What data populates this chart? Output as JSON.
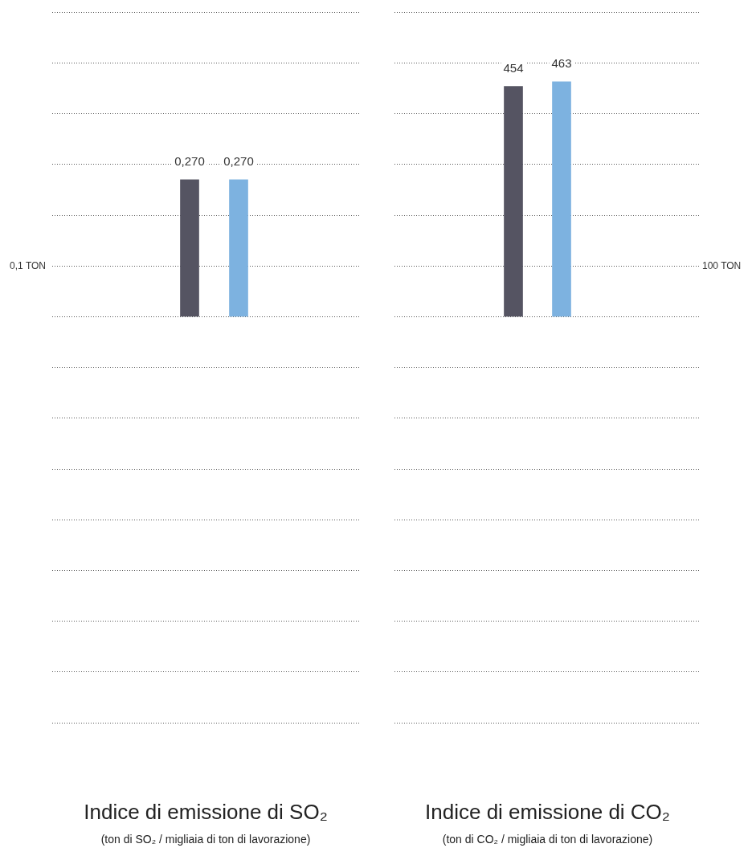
{
  "chart_data": [
    {
      "type": "bar",
      "title": "Indice di emissione di SO₂",
      "subtitle": "(ton di SO₂ / migliaia di ton di lavorazione)",
      "categories": [
        null,
        null
      ],
      "values": [
        0.27,
        0.27
      ],
      "colors": [
        "#555462",
        "#7db2e0"
      ],
      "value_labels": [
        "0,270",
        "0,270"
      ],
      "ylim": [
        -0.8,
        0.6
      ],
      "yticks": [
        {
          "value": -0.8,
          "label": null
        },
        {
          "value": -0.7,
          "label": null
        },
        {
          "value": -0.6,
          "label": null
        },
        {
          "value": -0.5,
          "label": null
        },
        {
          "value": -0.4,
          "label": null
        },
        {
          "value": -0.3,
          "label": null
        },
        {
          "value": -0.2,
          "label": null
        },
        {
          "value": -0.1,
          "label": null
        },
        {
          "value": 0,
          "label": null
        },
        {
          "value": 0.1,
          "label": null
        },
        {
          "value": 0.2,
          "label": null
        },
        {
          "value": 0.3,
          "label": null
        },
        {
          "value": 0.4,
          "label": null
        },
        {
          "value": 0.5,
          "label": null
        },
        {
          "value": 0.6,
          "label": null
        }
      ],
      "annotations": [
        "0,1 TON"
      ],
      "grid": "y",
      "tick_labels": "y"
    },
    {
      "type": "bar",
      "title": "Indice di emissione di CO₂",
      "subtitle": "(ton di CO₂ / migliaia di ton di lavorazione)",
      "categories": [
        null,
        null
      ],
      "values": [
        454,
        463
      ],
      "colors": [
        "#555462",
        "#7db2e0"
      ],
      "data_labels": true,
      "ylim": [
        -800,
        600
      ],
      "yticks": [
        {
          "value": -800,
          "label": null
        },
        {
          "value": -700,
          "label": null
        },
        {
          "value": -600,
          "label": null
        },
        {
          "value": -500,
          "label": null
        },
        {
          "value": -400,
          "label": null
        },
        {
          "value": -300,
          "label": null
        },
        {
          "value": -200,
          "label": null
        },
        {
          "value": -100,
          "label": null
        },
        {
          "value": 0,
          "label": null
        },
        {
          "value": 100,
          "label": null
        },
        {
          "value": 200,
          "label": null
        },
        {
          "value": 300,
          "label": null
        },
        {
          "value": 400,
          "label": null
        },
        {
          "value": 500,
          "label": null
        },
        {
          "value": 600,
          "label": null
        }
      ],
      "annotations": [
        "100 TON"
      ],
      "grid": "y",
      "tick_labels": "y"
    }
  ]
}
